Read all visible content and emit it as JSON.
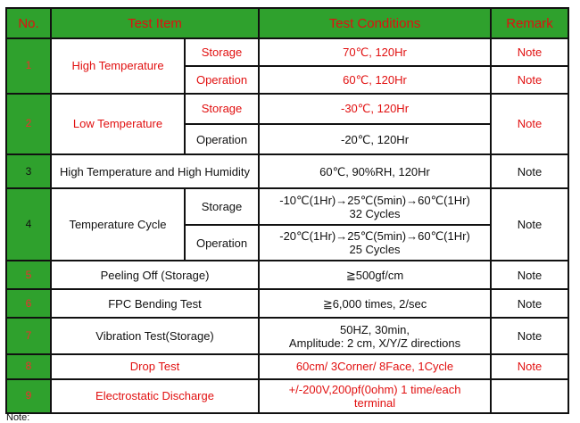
{
  "header": {
    "no": "No.",
    "item": "Test Item",
    "conditions": "Test Conditions",
    "remark": "Remark"
  },
  "rows": {
    "r1": {
      "no": "1",
      "item": "High Temperature",
      "sub1": "Storage",
      "cond1": "70℃, 120Hr",
      "sub2": "Operation",
      "cond2": "60℃, 120Hr",
      "remark": "Note"
    },
    "r2": {
      "no": "2",
      "item": "Low Temperature",
      "sub1": "Storage",
      "cond1": "-30℃, 120Hr",
      "sub2": "Operation",
      "cond2": "-20℃, 120Hr",
      "remark": "Note"
    },
    "r3": {
      "no": "3",
      "item": "High Temperature and High Humidity",
      "cond": "60℃, 90%RH, 120Hr",
      "remark": "Note"
    },
    "r4": {
      "no": "4",
      "item": "Temperature Cycle",
      "sub1": "Storage",
      "cond1a": "-10℃(1Hr)→25℃(5min)→60℃(1Hr)",
      "cond1b": "32 Cycles",
      "sub2": "Operation",
      "cond2a": "-20℃(1Hr)→25℃(5min)→60℃(1Hr)",
      "cond2b": "25 Cycles",
      "remark": "Note"
    },
    "r5": {
      "no": "5",
      "item": "Peeling Off (Storage)",
      "cond": "≧500gf/cm",
      "remark": "Note"
    },
    "r6": {
      "no": "6",
      "item": "FPC Bending Test",
      "cond": "≧6,000 times, 2/sec",
      "remark": "Note"
    },
    "r7": {
      "no": "7",
      "item": "Vibration Test(Storage)",
      "cond_a": "50HZ, 30min,",
      "cond_b": "Amplitude: 2 cm, X/Y/Z directions",
      "remark": "Note"
    },
    "r8": {
      "no": "8",
      "item": "Drop Test",
      "cond": "60cm/ 3Corner/ 8Face, 1Cycle",
      "remark": "Note"
    },
    "r9": {
      "no": "9",
      "item": "Electrostatic Discharge",
      "cond_a": "+/-200V,200pf(0ohm) 1 time/each",
      "cond_b": "terminal",
      "remark": ""
    }
  },
  "footer_note": "Note:",
  "colors": {
    "header_bg": "#2fa12d",
    "accent_red": "#e11010",
    "border": "#111111"
  }
}
